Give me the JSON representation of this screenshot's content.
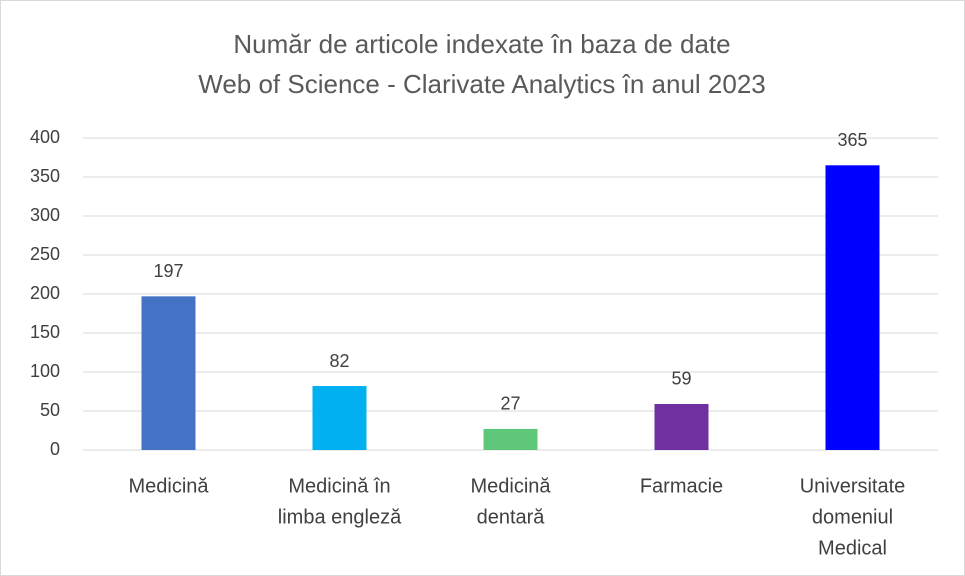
{
  "chart_data": {
    "type": "bar",
    "title": [
      "Număr de articole indexate în baza de date",
      "Web of Science - Clarivate Analytics în anul 2023"
    ],
    "categories": [
      [
        "Medicină"
      ],
      [
        "Medicină în",
        "limba engleză"
      ],
      [
        "Medicină",
        "dentară"
      ],
      [
        "Farmacie"
      ],
      [
        "Universitate",
        "domeniul",
        "Medical"
      ]
    ],
    "values": [
      197,
      82,
      27,
      59,
      365
    ],
    "colors": [
      "#4472c4",
      "#00b0f0",
      "#5ec77a",
      "#7030a0",
      "#0000ff"
    ],
    "ylim": [
      0,
      400
    ],
    "yticks": [
      0,
      50,
      100,
      150,
      200,
      250,
      300,
      350,
      400
    ],
    "grid": true
  }
}
